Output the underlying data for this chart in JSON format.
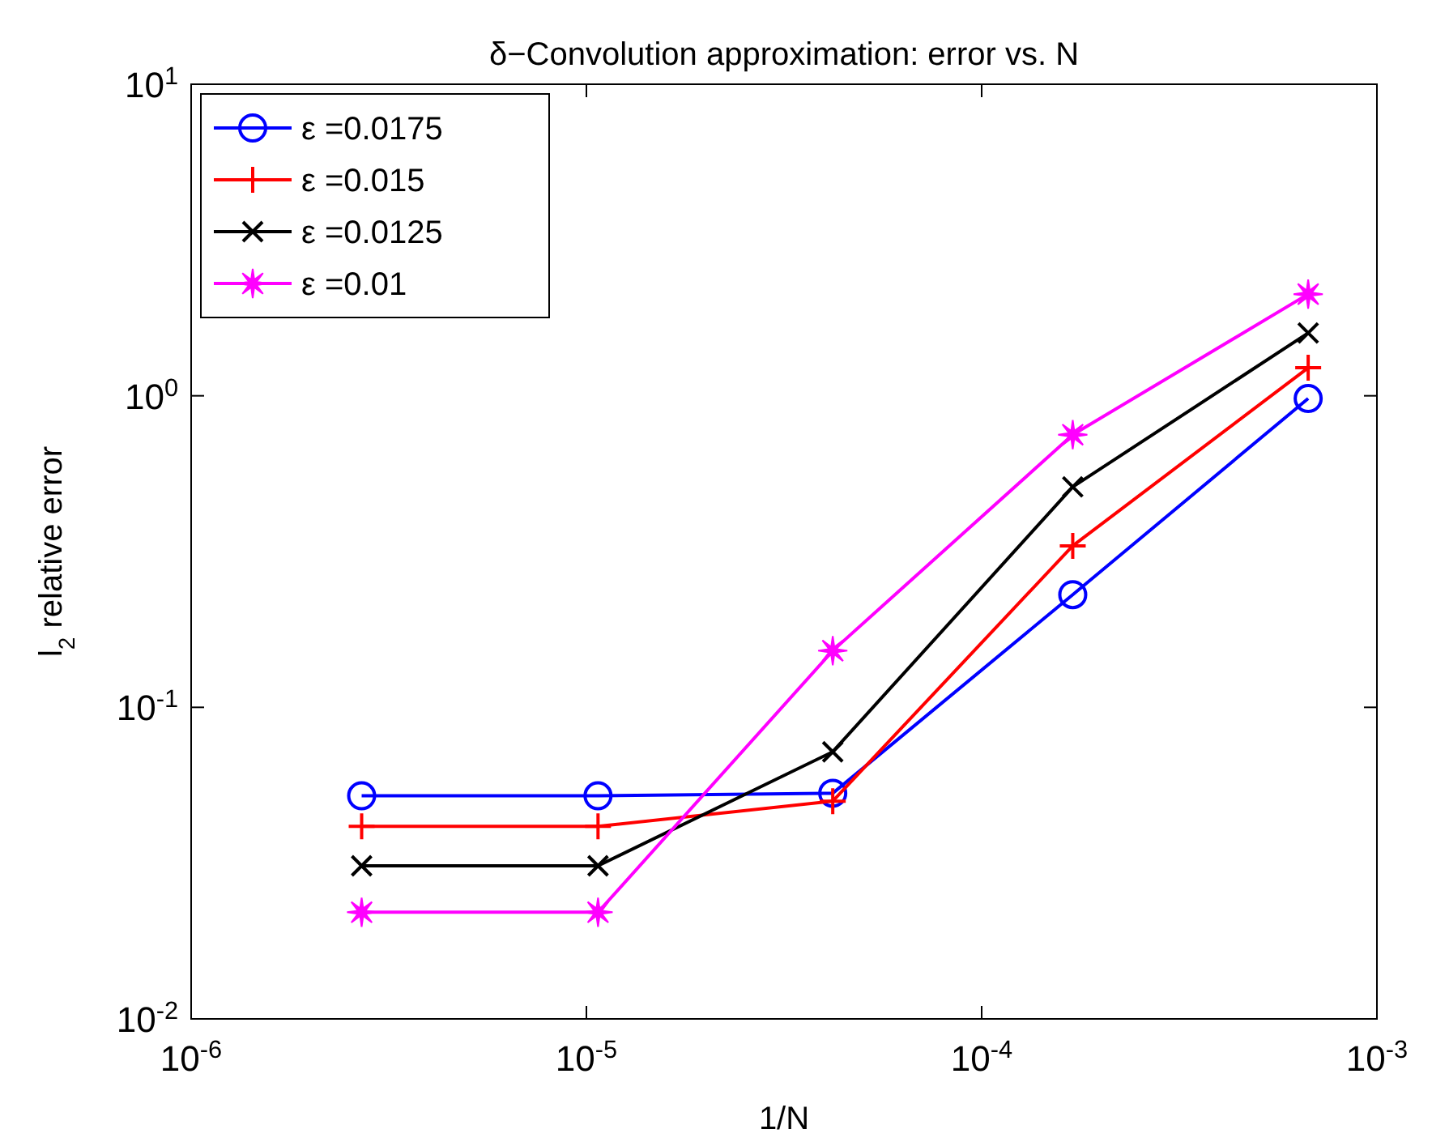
{
  "chart_data": {
    "type": "line",
    "title": "δ−Convolution approximation: error vs. N",
    "xlabel": "1/N",
    "ylabel": "l$_{2}$ relative error",
    "log": "xy",
    "xlim": [
      1e-06,
      0.001
    ],
    "ylim": [
      0.01,
      10
    ],
    "xticks": [
      {
        "value": 1e-06,
        "label": "10$^{-6}$"
      },
      {
        "value": 1e-05,
        "label": "10$^{-5}$"
      },
      {
        "value": 0.0001,
        "label": "10$^{-4}$"
      },
      {
        "value": 0.001,
        "label": "10$^{-3}$"
      }
    ],
    "yticks": [
      {
        "value": 0.01,
        "label": "10$^{-2}$"
      },
      {
        "value": 0.1,
        "label": "10$^{-1}$"
      },
      {
        "value": 1,
        "label": "10$^{0}$"
      },
      {
        "value": 10,
        "label": "10$^{1}$"
      }
    ],
    "x": [
      2.7e-06,
      1.07e-05,
      4.2e-05,
      0.00017,
      0.00067
    ],
    "grid": false,
    "legend": "top left",
    "line_style": "solid",
    "series": [
      {
        "name": "ε =0.0175",
        "color": "#0000ff",
        "marker": "circle",
        "values": [
          0.052,
          0.052,
          0.053,
          0.23,
          0.98
        ]
      },
      {
        "name": "ε =0.015",
        "color": "#ff0000",
        "marker": "plus",
        "values": [
          0.0415,
          0.0415,
          0.05,
          0.33,
          1.23
        ]
      },
      {
        "name": "ε =0.0125",
        "color": "#000000",
        "marker": "cross",
        "values": [
          0.031,
          0.031,
          0.072,
          0.51,
          1.59
        ]
      },
      {
        "name": "ε =0.01",
        "color": "#ff00ff",
        "marker": "star",
        "values": [
          0.022,
          0.022,
          0.152,
          0.75,
          2.12
        ]
      }
    ]
  }
}
